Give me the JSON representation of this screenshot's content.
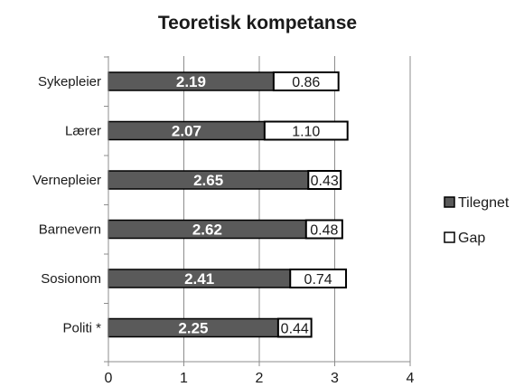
{
  "chart_data": {
    "type": "bar",
    "orientation": "horizontal",
    "stacked": true,
    "title": "Teoretisk kompetanse",
    "categories": [
      "Sykepleier",
      "Lærer",
      "Vernepleier",
      "Barnevern",
      "Sosionom",
      "Politi *"
    ],
    "series": [
      {
        "name": "Tilegnet",
        "values": [
          2.19,
          2.07,
          2.65,
          2.62,
          2.41,
          2.25
        ],
        "value_labels": [
          "2.19",
          "2.07",
          "2.65",
          "2.62",
          "2.41",
          "2.25"
        ],
        "color": "#5a5a5a"
      },
      {
        "name": "Gap",
        "values": [
          0.86,
          1.1,
          0.43,
          0.48,
          0.74,
          0.44
        ],
        "value_labels": [
          "0.86",
          "1.10",
          "0.43",
          "0.48",
          "0.74",
          "0.44"
        ],
        "color": "#ffffff"
      }
    ],
    "xlim": [
      0,
      4
    ],
    "x_ticks": [
      "0",
      "1",
      "2",
      "3",
      "4"
    ],
    "grid": true,
    "legend_position": "right"
  }
}
